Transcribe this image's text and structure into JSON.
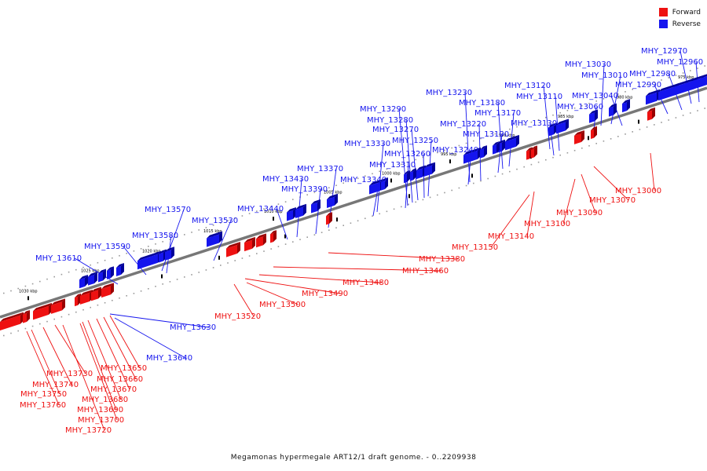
{
  "legend": {
    "forward_label": "Forward",
    "reverse_label": "Reverse",
    "forward_color": "#ee1111",
    "reverse_color": "#1515ee"
  },
  "caption": "Megamonas hypermegale ART12/1 draft genome. - 0..2209938",
  "axis": {
    "ticks": [
      "975 kbp",
      "980 kbp",
      "985 kbp",
      "990 kbp",
      "995 kbp",
      "1000 kbp",
      "1005 kbp",
      "1010 kbp",
      "1015 kbp",
      "1020 kbp",
      "1025 kbp",
      "1030 kbp"
    ]
  },
  "genes_reverse": [
    "MHY_12960",
    "MHY_12970",
    "MHY_12980",
    "MHY_12990",
    "MHY_13010",
    "MHY_13030",
    "MHY_13040",
    "MHY_13060",
    "MHY_13110",
    "MHY_13120",
    "MHY_13130",
    "MHY_13170",
    "MHY_13180",
    "MHY_13190",
    "MHY_13220",
    "MHY_13230",
    "MHY_13240",
    "MHY_13250",
    "MHY_13260",
    "MHY_13270",
    "MHY_13280",
    "MHY_13290",
    "MHY_13310",
    "MHY_13330",
    "MHY_13340",
    "MHY_13370",
    "MHY_13390",
    "MHY_13430",
    "MHY_13440",
    "MHY_13530",
    "MHY_13570",
    "MHY_13580",
    "MHY_13590",
    "MHY_13610",
    "MHY_13630",
    "MHY_13640"
  ],
  "genes_forward": [
    "MHY_13000",
    "MHY_13070",
    "MHY_13090",
    "MHY_13100",
    "MHY_13140",
    "MHY_13150",
    "MHY_13380",
    "MHY_13460",
    "MHY_13480",
    "MHY_13490",
    "MHY_13500",
    "MHY_13520",
    "MHY_13650",
    "MHY_13660",
    "MHY_13670",
    "MHY_13680",
    "MHY_13690",
    "MHY_13700",
    "MHY_13720",
    "MHY_13730",
    "MHY_13740",
    "MHY_13750",
    "MHY_13760"
  ]
}
